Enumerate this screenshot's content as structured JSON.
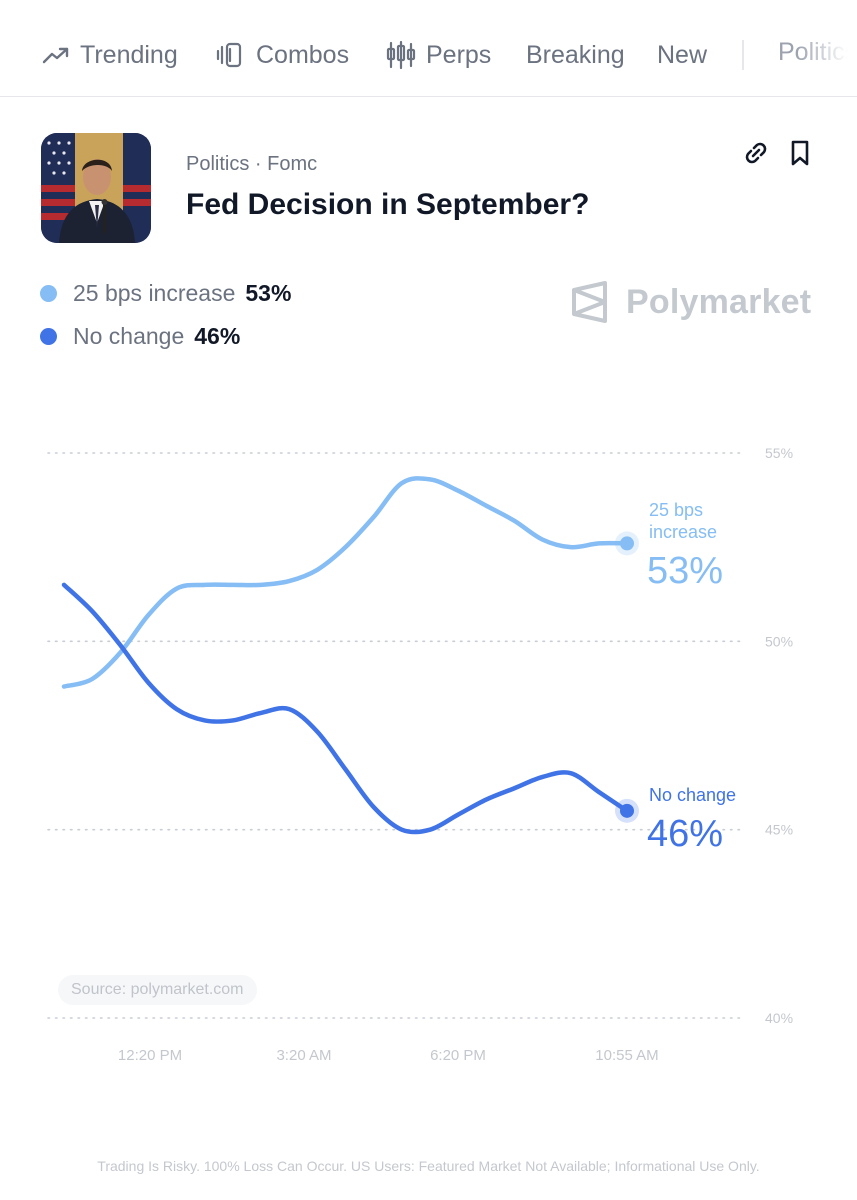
{
  "nav": {
    "items": [
      {
        "label": "Trending",
        "icon": "trending-icon"
      },
      {
        "label": "Combos",
        "icon": "combos-icon"
      },
      {
        "label": "Perps",
        "icon": "candlestick-icon"
      },
      {
        "label": "Breaking"
      },
      {
        "label": "New"
      }
    ],
    "overflow_label": "Politics"
  },
  "market": {
    "breadcrumb": "Politics · Fomc",
    "title": "Fed Decision in September?"
  },
  "legend": [
    {
      "label": "25 bps increase",
      "value": "53%",
      "color": "#85bdf4"
    },
    {
      "label": "No change",
      "value": "46%",
      "color": "#3f73e6"
    }
  ],
  "brand": {
    "name": "Polymarket"
  },
  "chart_data": {
    "type": "line",
    "x_ticks": [
      "12:20 PM",
      "3:20 AM",
      "6:20 PM",
      "10:55 AM"
    ],
    "y_ticks": [
      "55%",
      "50%",
      "45%",
      "40%"
    ],
    "ylim": [
      40,
      55
    ],
    "grid": true,
    "series": [
      {
        "name": "25 bps increase",
        "end_label": [
          "25 bps",
          "increase"
        ],
        "end_value": "53%",
        "color": "#85bdf4",
        "values": [
          48.8,
          49.0,
          49.7,
          50.7,
          51.4,
          51.5,
          51.5,
          51.5,
          51.6,
          51.9,
          52.5,
          53.3,
          54.2,
          54.3,
          54.0,
          53.6,
          53.2,
          52.7,
          52.5,
          52.6,
          52.6
        ]
      },
      {
        "name": "No change",
        "end_label": [
          "No change"
        ],
        "end_value": "46%",
        "color": "#3f73e6",
        "values": [
          51.5,
          50.8,
          49.9,
          48.9,
          48.2,
          47.9,
          47.9,
          48.1,
          48.2,
          47.6,
          46.6,
          45.6,
          45.0,
          45.0,
          45.4,
          45.8,
          46.1,
          46.4,
          46.5,
          46.0,
          45.5
        ]
      }
    ]
  },
  "source": "Source: polymarket.com",
  "footer": "Trading Is Risky. 100% Loss Can Occur. US Users: Featured Market Not Available; Informational Use Only."
}
